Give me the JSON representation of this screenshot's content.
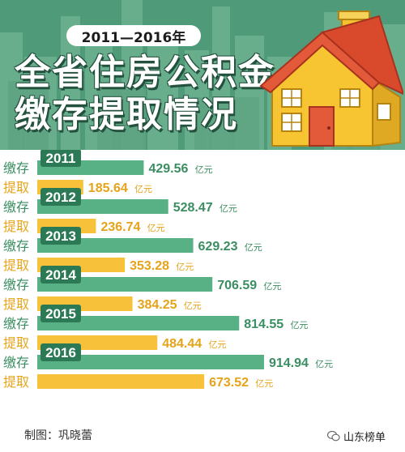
{
  "header": {
    "years_pill": "2011—2016年",
    "title_line1": "全省住房公积金",
    "title_line2": "缴存提取情况"
  },
  "labels": {
    "deposit": "缴存",
    "withdraw": "提取",
    "unit": "亿元"
  },
  "colors": {
    "deposit_bar": "#57b184",
    "withdraw_bar": "#f7c23a",
    "deposit_text": "#3b8e62",
    "withdraw_text": "#e5a319",
    "year_tag": "#2c7a55",
    "banner_bg": "#4f9a78"
  },
  "chart_data": {
    "type": "bar",
    "orientation": "horizontal",
    "categories": [
      "2011",
      "2012",
      "2013",
      "2014",
      "2015",
      "2016"
    ],
    "series": [
      {
        "name": "缴存",
        "values": [
          429.56,
          528.47,
          629.23,
          706.59,
          814.55,
          914.94
        ]
      },
      {
        "name": "提取",
        "values": [
          185.64,
          236.74,
          353.28,
          384.25,
          484.44,
          673.52
        ]
      }
    ],
    "value_labels": {
      "缴存": [
        "429.56",
        "528.47",
        "629.23",
        "706.59",
        "814.55",
        "914.94"
      ],
      "提取": [
        "185.64",
        "236.74",
        "353.28",
        "384.25",
        "484.44",
        "673.52"
      ]
    },
    "unit": "亿元",
    "xlim": [
      0,
      1000
    ]
  },
  "footer": {
    "credit": "制图：巩晓蕾",
    "brand": "山东榜单"
  }
}
